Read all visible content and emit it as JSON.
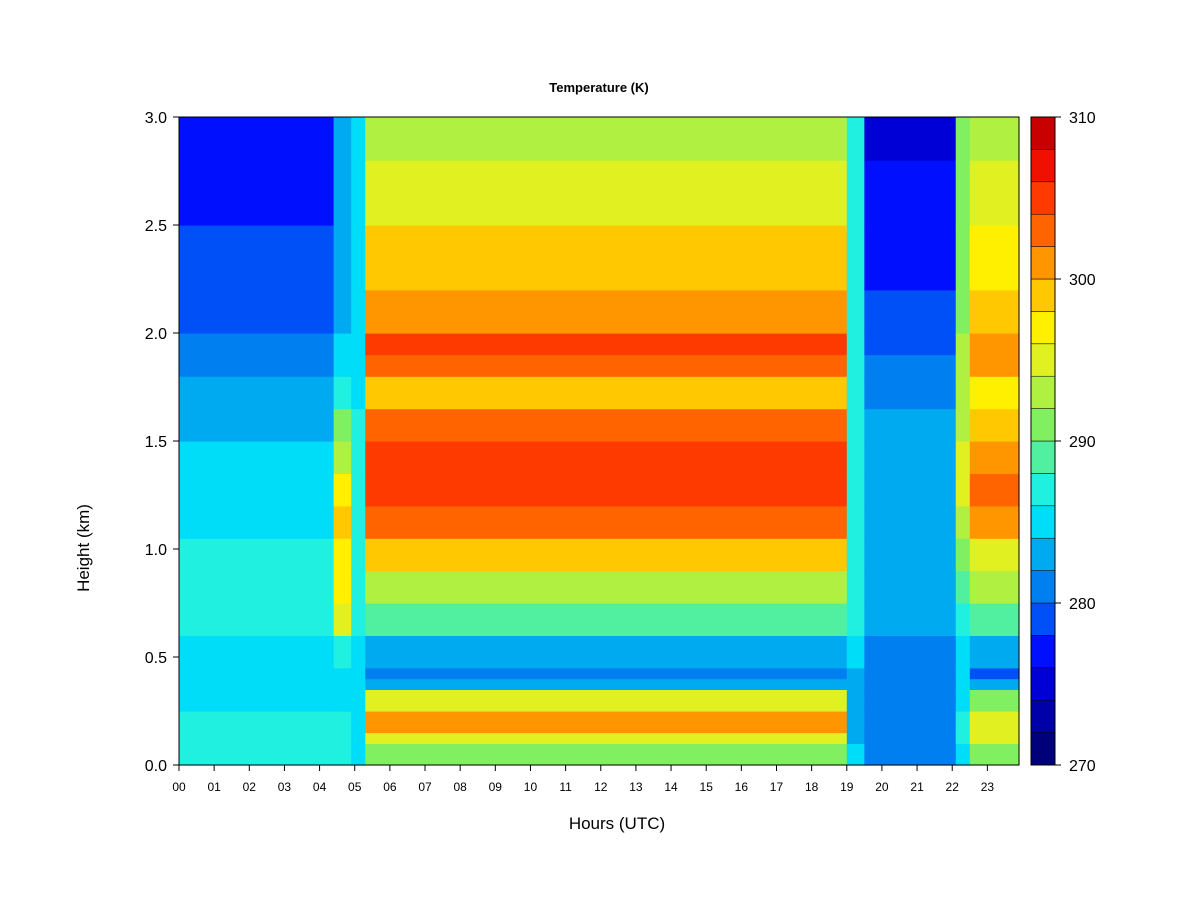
{
  "chart_data": {
    "type": "heatmap",
    "title": "Temperature (K)",
    "xlabel": "Hours (UTC)",
    "ylabel": "Height (km)",
    "xlim": [
      0,
      23.9
    ],
    "ylim": [
      0.0,
      3.0
    ],
    "x_ticks": [
      "00",
      "01",
      "02",
      "03",
      "04",
      "05",
      "06",
      "07",
      "08",
      "09",
      "10",
      "11",
      "12",
      "13",
      "14",
      "15",
      "16",
      "17",
      "18",
      "19",
      "20",
      "21",
      "22",
      "23"
    ],
    "y_ticks": [
      "0.0",
      "0.5",
      "1.0",
      "1.5",
      "2.0",
      "2.5",
      "3.0"
    ],
    "colorbar": {
      "min": 270,
      "max": 310,
      "step": 2,
      "tick_labels": [
        "270",
        "280",
        "290",
        "300",
        "310"
      ],
      "colors": [
        "#00007A",
        "#0000A8",
        "#0000D6",
        "#0010FF",
        "#0050F8",
        "#0080F0",
        "#00AAF0",
        "#00DDF8",
        "#20F0E0",
        "#50F0A0",
        "#80F060",
        "#B0F040",
        "#E0F020",
        "#FFF000",
        "#FFC800",
        "#FF9600",
        "#FF6400",
        "#FF3A00",
        "#F01000",
        "#C80000",
        "#900000"
      ]
    },
    "height_grid_km": [
      0.0,
      0.1,
      0.15,
      0.25,
      0.35,
      0.4,
      0.45,
      0.6,
      0.75,
      0.9,
      1.05,
      1.2,
      1.35,
      1.5,
      1.65,
      1.8,
      1.9,
      2.0,
      2.2,
      2.5,
      2.8,
      3.0
    ],
    "time_segments_utc": [
      {
        "start": 0.0,
        "end": 4.4,
        "temperature_K": [
          287,
          286,
          286,
          285,
          285,
          285,
          285,
          286,
          286,
          286,
          285,
          285,
          284,
          283,
          282,
          281,
          280,
          279,
          278,
          277,
          276,
          275
        ]
      },
      {
        "start": 4.4,
        "end": 4.9,
        "temperature_K": [
          286,
          286,
          286,
          285,
          285,
          285,
          286,
          294,
          296,
          297,
          298,
          296,
          293,
          290,
          287,
          285,
          284,
          283,
          283,
          282,
          283,
          283
        ]
      },
      {
        "start": 4.9,
        "end": 5.3,
        "temperature_K": [
          285,
          285,
          285,
          285,
          284,
          284,
          285,
          286,
          286,
          286,
          286,
          286,
          286,
          286,
          285,
          284,
          284,
          284,
          284,
          284,
          284,
          284
        ]
      },
      {
        "start": 5.3,
        "end": 19.0,
        "temperature_K": [
          291,
          295,
          301,
          294,
          283,
          280,
          283,
          289,
          293,
          298,
          302,
          305,
          304,
          302,
          299,
          302,
          304,
          301,
          298,
          295,
          293,
          291
        ]
      },
      {
        "start": 19.0,
        "end": 19.5,
        "temperature_K": [
          284,
          283,
          283,
          283,
          283,
          283,
          284,
          286,
          287,
          287,
          287,
          287,
          287,
          287,
          286,
          286,
          286,
          286,
          286,
          286,
          287,
          288
        ]
      },
      {
        "start": 19.5,
        "end": 22.1,
        "temperature_K": [
          280,
          280,
          280,
          280,
          280,
          280,
          281,
          282,
          283,
          283,
          283,
          283,
          283,
          282,
          281,
          280,
          279,
          278,
          277,
          276,
          275,
          274
        ]
      },
      {
        "start": 22.1,
        "end": 22.5,
        "temperature_K": [
          285,
          286,
          286,
          285,
          284,
          284,
          285,
          287,
          289,
          291,
          293,
          294,
          294,
          293,
          292,
          292,
          292,
          291,
          291,
          291,
          291,
          291
        ]
      },
      {
        "start": 22.5,
        "end": 23.9,
        "temperature_K": [
          290,
          294,
          294,
          290,
          282,
          279,
          283,
          288,
          292,
          295,
          300,
          302,
          301,
          298,
          296,
          300,
          301,
          298,
          296,
          294,
          293,
          292
        ]
      }
    ]
  }
}
